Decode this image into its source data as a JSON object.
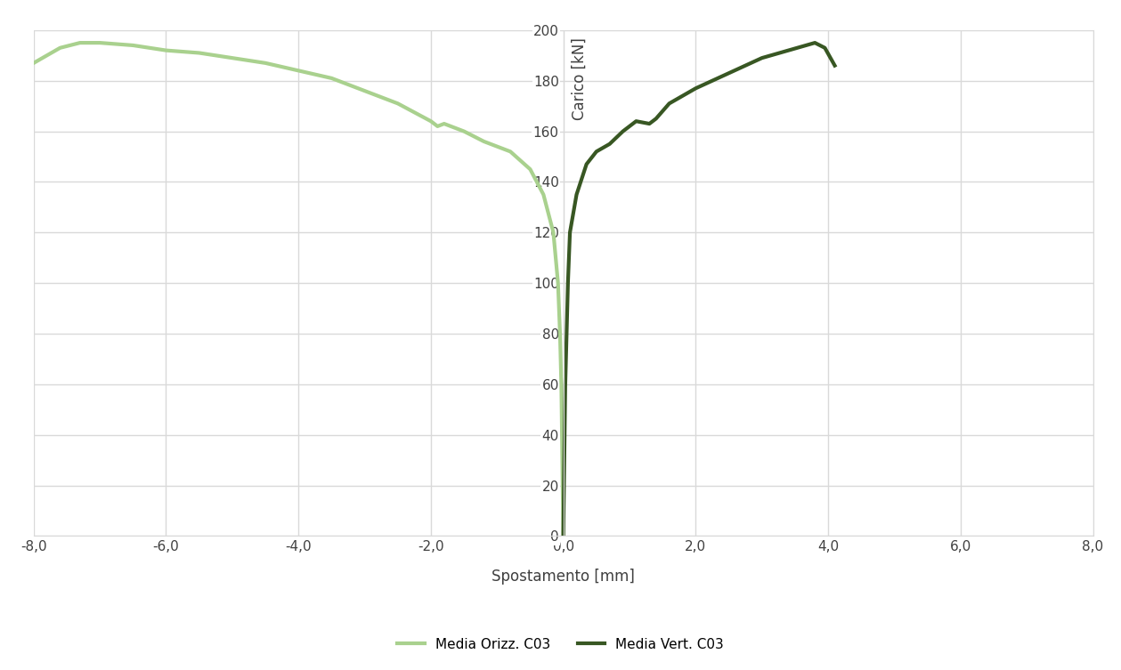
{
  "chart_data": {
    "type": "line",
    "x_label": "Spostamento [mm]",
    "y_label": "Carico [kN]",
    "series": [
      {
        "name": "Media Orizz. C03",
        "color": "#a9d18e",
        "x": [
          0,
          -0.01,
          -0.02,
          -0.03,
          -0.05,
          -0.08,
          -0.15,
          -0.3,
          -0.5,
          -0.8,
          -1.0,
          -1.2,
          -1.5,
          -1.8,
          -1.9,
          -2.0,
          -2.5,
          -3.0,
          -3.5,
          -4.0,
          -4.5,
          -5.0,
          -5.5,
          -6.0,
          -6.5,
          -7.0,
          -7.3,
          -7.6,
          -8.0
        ],
        "values": [
          0,
          20,
          40,
          60,
          80,
          100,
          120,
          135,
          145,
          152,
          154,
          156,
          160,
          163,
          162,
          164,
          171,
          176,
          181,
          184,
          187,
          189,
          191,
          192,
          194,
          195,
          195,
          193,
          187
        ]
      },
      {
        "name": "Media Vert. C03",
        "color": "#385723",
        "x": [
          0,
          0.01,
          0.02,
          0.03,
          0.05,
          0.07,
          0.1,
          0.2,
          0.35,
          0.5,
          0.7,
          0.9,
          1.1,
          1.3,
          1.4,
          1.6,
          2.0,
          2.5,
          3.0,
          3.4,
          3.8,
          3.95,
          4.1
        ],
        "values": [
          0,
          20,
          40,
          60,
          80,
          100,
          120,
          135,
          147,
          152,
          155,
          160,
          164,
          163,
          165,
          171,
          177,
          183,
          189,
          192,
          195,
          193,
          186
        ]
      }
    ],
    "xlim": [
      -8,
      8
    ],
    "xticks": [
      {
        "value": -8,
        "label": "-8,0"
      },
      {
        "value": -6,
        "label": "-6,0"
      },
      {
        "value": -4,
        "label": "-4,0"
      },
      {
        "value": -2,
        "label": "-2,0"
      },
      {
        "value": 0,
        "label": "0,0"
      },
      {
        "value": 2,
        "label": "2,0"
      },
      {
        "value": 4,
        "label": "4,0"
      },
      {
        "value": 6,
        "label": "6,0"
      },
      {
        "value": 8,
        "label": "8,0"
      }
    ],
    "ylim": [
      0,
      200
    ],
    "yticks": [
      0,
      20,
      40,
      60,
      80,
      100,
      120,
      140,
      160,
      180,
      200
    ],
    "grid": true,
    "legend": "lower center"
  }
}
